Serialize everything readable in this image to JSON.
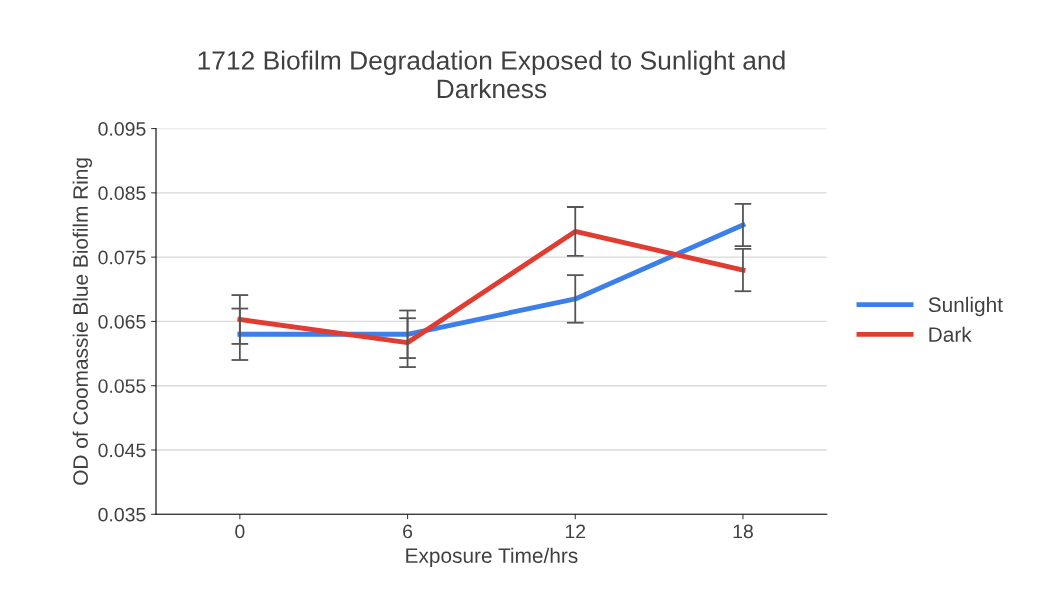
{
  "chart_data": {
    "type": "line",
    "title": "1712 Biofilm Degradation Exposed to Sunlight and\nDarkness",
    "xlabel": "Exposure Time/hrs",
    "ylabel": "OD of Coomassie Blue Biofilm Ring",
    "categories": [
      "0",
      "6",
      "12",
      "18"
    ],
    "series": [
      {
        "name": "Sunlight",
        "color": "#3c7fe8",
        "values": [
          0.063,
          0.063,
          0.0685,
          0.08
        ],
        "errors": [
          0.004,
          0.0037,
          0.0037,
          0.0033
        ]
      },
      {
        "name": "Dark",
        "color": "#e03c31",
        "values": [
          0.0653,
          0.0617,
          0.079,
          0.073
        ],
        "errors": [
          0.0038,
          0.0038,
          0.0038,
          0.0033
        ]
      }
    ],
    "ylim": [
      0.035,
      0.095
    ],
    "yticks": [
      {
        "value": 0.035,
        "label": "0.035"
      },
      {
        "value": 0.045,
        "label": "0.045"
      },
      {
        "value": 0.055,
        "label": "0.055"
      },
      {
        "value": 0.065,
        "label": "0.065"
      },
      {
        "value": 0.075,
        "label": "0.075"
      },
      {
        "value": 0.085,
        "label": "0.085"
      },
      {
        "value": 0.095,
        "label": "0.095"
      }
    ],
    "grid": "y",
    "legend": "right",
    "marker": "none",
    "line_style": "solid"
  }
}
